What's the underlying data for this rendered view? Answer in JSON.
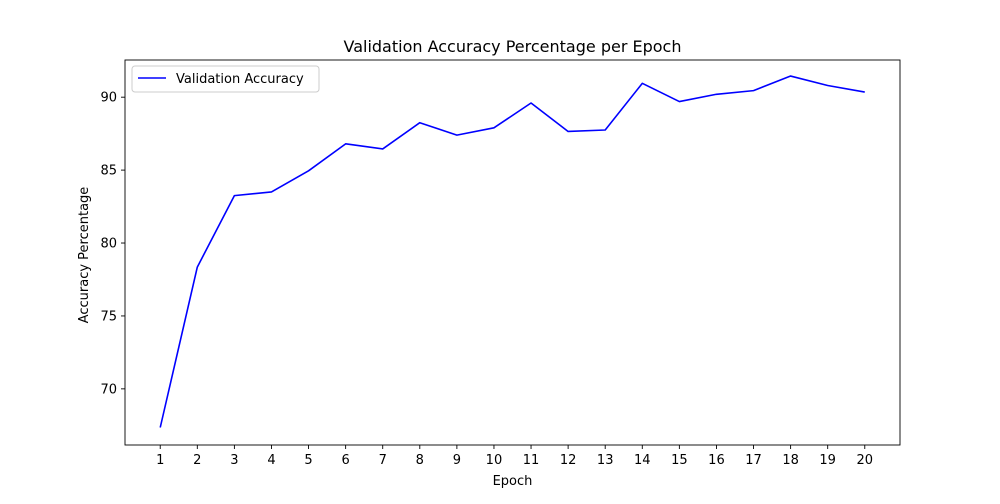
{
  "chart_data": {
    "type": "line",
    "title": "Validation Accuracy Percentage per Epoch",
    "xlabel": "Epoch",
    "ylabel": "Accuracy Percentage",
    "x": [
      1,
      2,
      3,
      4,
      5,
      6,
      7,
      8,
      9,
      10,
      11,
      12,
      13,
      14,
      15,
      16,
      17,
      18,
      19,
      20
    ],
    "xticks": [
      "1",
      "2",
      "3",
      "4",
      "5",
      "6",
      "7",
      "8",
      "9",
      "10",
      "11",
      "12",
      "13",
      "14",
      "15",
      "16",
      "17",
      "18",
      "19",
      "20"
    ],
    "yticks": [
      70,
      75,
      80,
      85,
      90
    ],
    "xlim": [
      0.05,
      20.95
    ],
    "ylim": [
      66.15,
      92.55
    ],
    "series": [
      {
        "name": "Validation Accuracy",
        "color": "#0000ff",
        "values": [
          67.35,
          78.35,
          83.25,
          83.5,
          84.95,
          86.8,
          86.45,
          88.25,
          87.4,
          87.9,
          89.6,
          87.65,
          87.75,
          90.95,
          89.7,
          90.2,
          90.45,
          91.45,
          90.8,
          90.35
        ]
      }
    ],
    "grid": false,
    "legend": "top-left"
  }
}
